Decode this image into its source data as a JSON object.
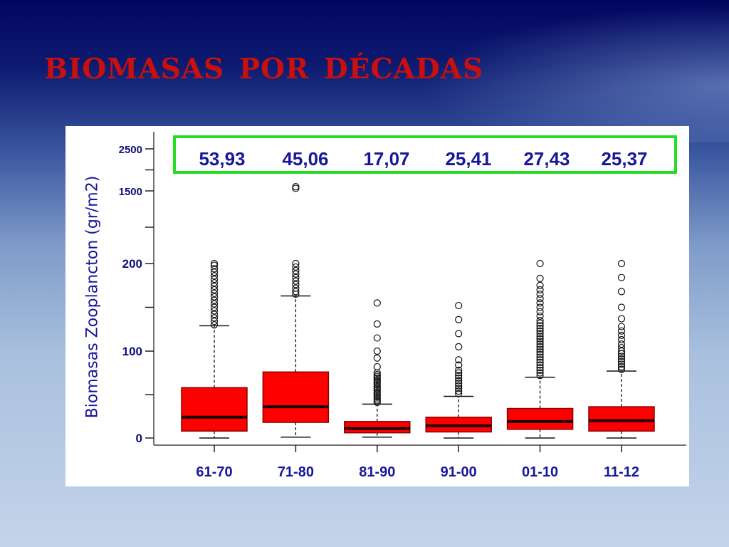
{
  "slide": {
    "title": "Biomasas por décadas"
  },
  "chart_data": {
    "type": "boxplot",
    "ylabel": "Biomasas Zooplancton (gr/m2)",
    "y_axis": {
      "scale": "broken",
      "tick_labels": [
        "0",
        "100",
        "200",
        "1500",
        "2500"
      ],
      "tick_values": [
        0,
        100,
        200,
        1500,
        2500
      ]
    },
    "categories": [
      "61-70",
      "71-80",
      "81-90",
      "91-00",
      "01-10",
      "11-12"
    ],
    "highlight_labels": [
      "53,93",
      "45,06",
      "17,07",
      "25,41",
      "27,43",
      "25,37"
    ],
    "boxes": [
      {
        "category": "61-70",
        "min": 0,
        "q1": 8,
        "median": 24,
        "q3": 58,
        "whisker_high": 129,
        "outliers": [
          130,
          134,
          138,
          142,
          146,
          150,
          154,
          158,
          162,
          166,
          170,
          174,
          178,
          182,
          186,
          190,
          194,
          198,
          201
        ]
      },
      {
        "category": "71-80",
        "min": 1,
        "q1": 18,
        "median": 36,
        "q3": 76,
        "whisker_high": 163,
        "outliers": [
          165,
          168,
          172,
          176,
          180,
          184,
          188,
          192,
          196,
          200,
          1560,
          1600
        ]
      },
      {
        "category": "81-90",
        "min": 1,
        "q1": 6,
        "median": 11,
        "q3": 19,
        "whisker_high": 39,
        "outliers": [
          41,
          43,
          45,
          47,
          49,
          51,
          53,
          55,
          57,
          59,
          61,
          63,
          65,
          67,
          69,
          71,
          73,
          75,
          82,
          92,
          100,
          115,
          131,
          155
        ]
      },
      {
        "category": "91-00",
        "min": 0,
        "q1": 7,
        "median": 14,
        "q3": 24,
        "whisker_high": 48,
        "outliers": [
          51,
          54,
          57,
          60,
          63,
          66,
          69,
          72,
          75,
          78,
          84,
          90,
          105,
          120,
          136,
          152
        ]
      },
      {
        "category": "01-10",
        "min": 0,
        "q1": 10,
        "median": 19,
        "q3": 34,
        "whisker_high": 70,
        "outliers": [
          72,
          75,
          78,
          81,
          84,
          87,
          90,
          93,
          96,
          99,
          102,
          105,
          108,
          111,
          114,
          117,
          120,
          123,
          126,
          129,
          132,
          135,
          140,
          145,
          150,
          155,
          160,
          165,
          170,
          175,
          183,
          200
        ]
      },
      {
        "category": "11-12",
        "min": 0,
        "q1": 8,
        "median": 20,
        "q3": 36,
        "whisker_high": 77,
        "outliers": [
          79,
          82,
          85,
          88,
          91,
          94,
          97,
          100,
          104,
          108,
          113,
          118,
          123,
          128,
          137,
          150,
          168,
          184,
          200
        ]
      }
    ],
    "colors": {
      "box_fill": "#ff0000",
      "box_stroke": "#8b0000",
      "median": "#1a0000",
      "highlight_border": "#22dd22",
      "value_text": "#17179a",
      "tick_text": "#0f0f7a"
    }
  }
}
